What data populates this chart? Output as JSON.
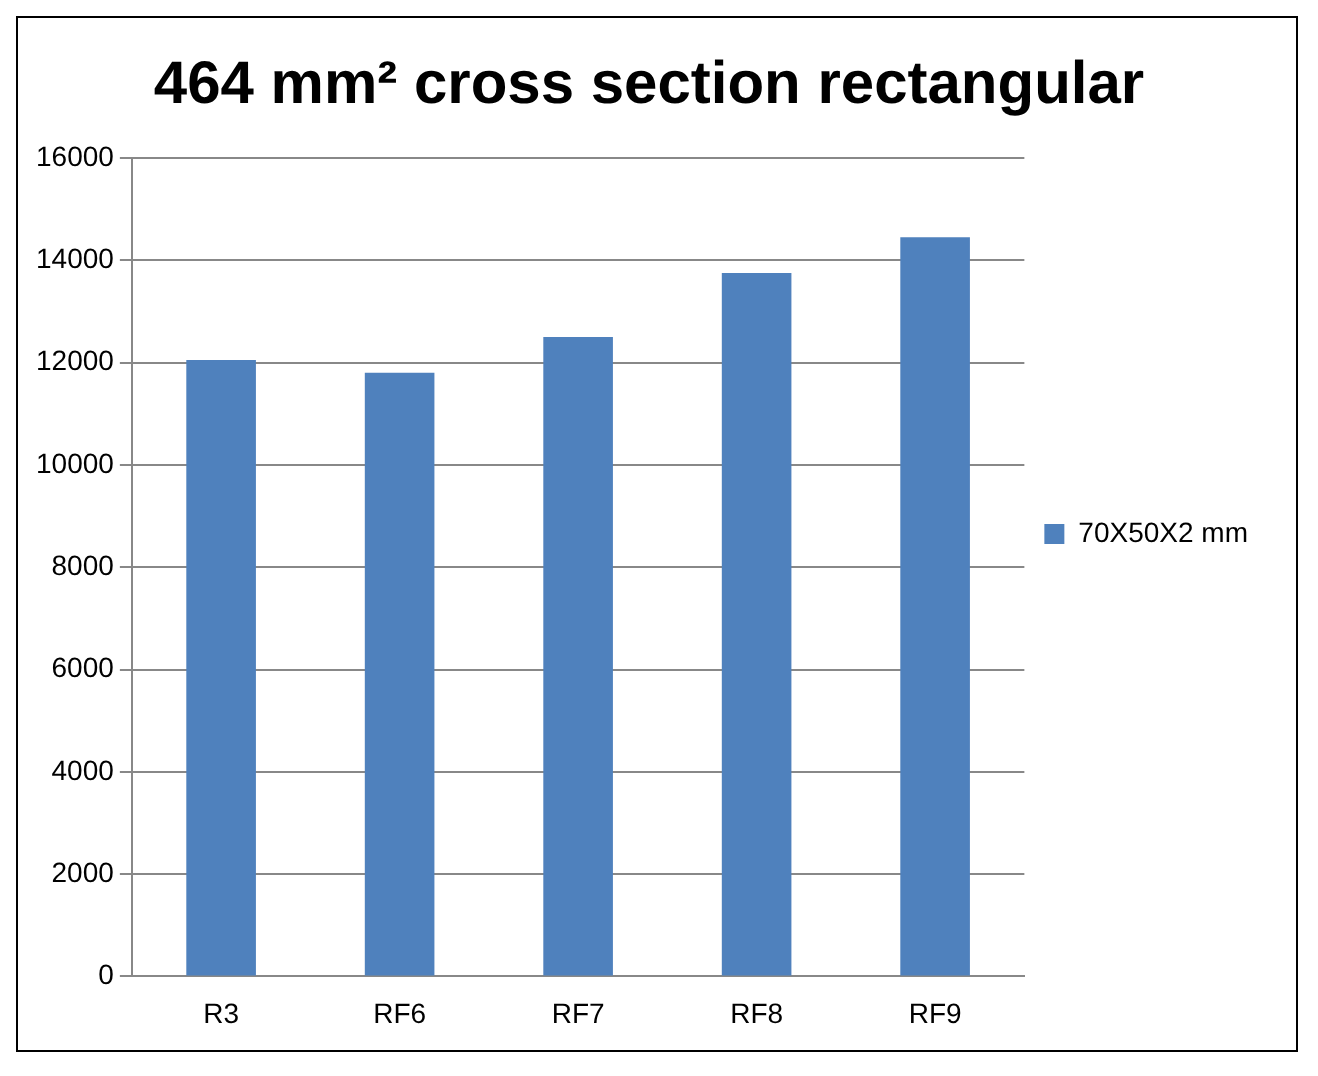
{
  "chart_data": {
    "type": "bar",
    "title": "464 mm² cross section rectangular",
    "categories": [
      "R3",
      "RF6",
      "RF7",
      "RF8",
      "RF9"
    ],
    "series": [
      {
        "name": "70X50X2 mm",
        "color": "#4f81bd",
        "values": [
          12050,
          11800,
          12500,
          13750,
          14450
        ]
      }
    ],
    "ylim": [
      0,
      16000
    ],
    "yticks": [
      0,
      2000,
      4000,
      6000,
      8000,
      10000,
      12000,
      14000,
      16000
    ],
    "grid": "y",
    "legend": "right"
  }
}
